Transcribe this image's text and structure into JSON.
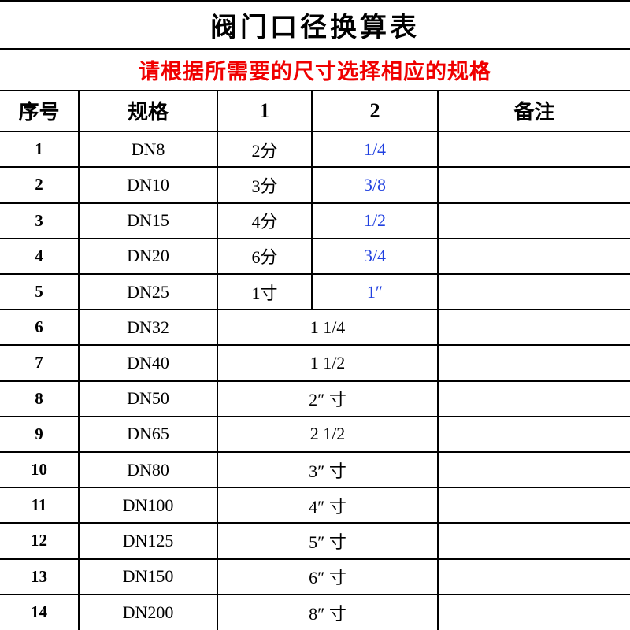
{
  "title": "阀门口径换算表",
  "subtitle": "请根据所需要的尺寸选择相应的规格",
  "subtitle_color": "#f00000",
  "headers": {
    "idx": "序号",
    "spec": "规格",
    "c1": "1",
    "c2": "2",
    "note": "备注"
  },
  "col2_color": "#2040e0",
  "rows": [
    {
      "idx": "1",
      "spec": "DN8",
      "c1": "2分",
      "c2": "1/4",
      "merged": false,
      "note": ""
    },
    {
      "idx": "2",
      "spec": "DN10",
      "c1": "3分",
      "c2": "3/8",
      "merged": false,
      "note": ""
    },
    {
      "idx": "3",
      "spec": "DN15",
      "c1": "4分",
      "c2": "1/2",
      "merged": false,
      "note": ""
    },
    {
      "idx": "4",
      "spec": "DN20",
      "c1": "6分",
      "c2": "3/4",
      "merged": false,
      "note": ""
    },
    {
      "idx": "5",
      "spec": "DN25",
      "c1": "1寸",
      "c2": "1″",
      "merged": false,
      "note": ""
    },
    {
      "idx": "6",
      "spec": "DN32",
      "c1": "1 1/4",
      "merged": true,
      "note": ""
    },
    {
      "idx": "7",
      "spec": "DN40",
      "c1": "1 1/2",
      "merged": true,
      "note": ""
    },
    {
      "idx": "8",
      "spec": "DN50",
      "c1": "2″ 寸",
      "merged": true,
      "note": ""
    },
    {
      "idx": "9",
      "spec": "DN65",
      "c1": "2 1/2",
      "merged": true,
      "note": ""
    },
    {
      "idx": "10",
      "spec": "DN80",
      "c1": "3″ 寸",
      "merged": true,
      "note": ""
    },
    {
      "idx": "11",
      "spec": "DN100",
      "c1": "4″ 寸",
      "merged": true,
      "note": ""
    },
    {
      "idx": "12",
      "spec": "DN125",
      "c1": "5″ 寸",
      "merged": true,
      "note": ""
    },
    {
      "idx": "13",
      "spec": "DN150",
      "c1": "6″ 寸",
      "merged": true,
      "note": ""
    },
    {
      "idx": "14",
      "spec": "DN200",
      "c1": "8″ 寸",
      "merged": true,
      "note": ""
    }
  ],
  "styling": {
    "border_color": "#000000",
    "background_color": "#ffffff",
    "title_fontsize": 34,
    "subtitle_fontsize": 27,
    "header_fontsize": 26,
    "body_fontsize": 22,
    "font_family": "SimSun, 宋体, serif"
  }
}
